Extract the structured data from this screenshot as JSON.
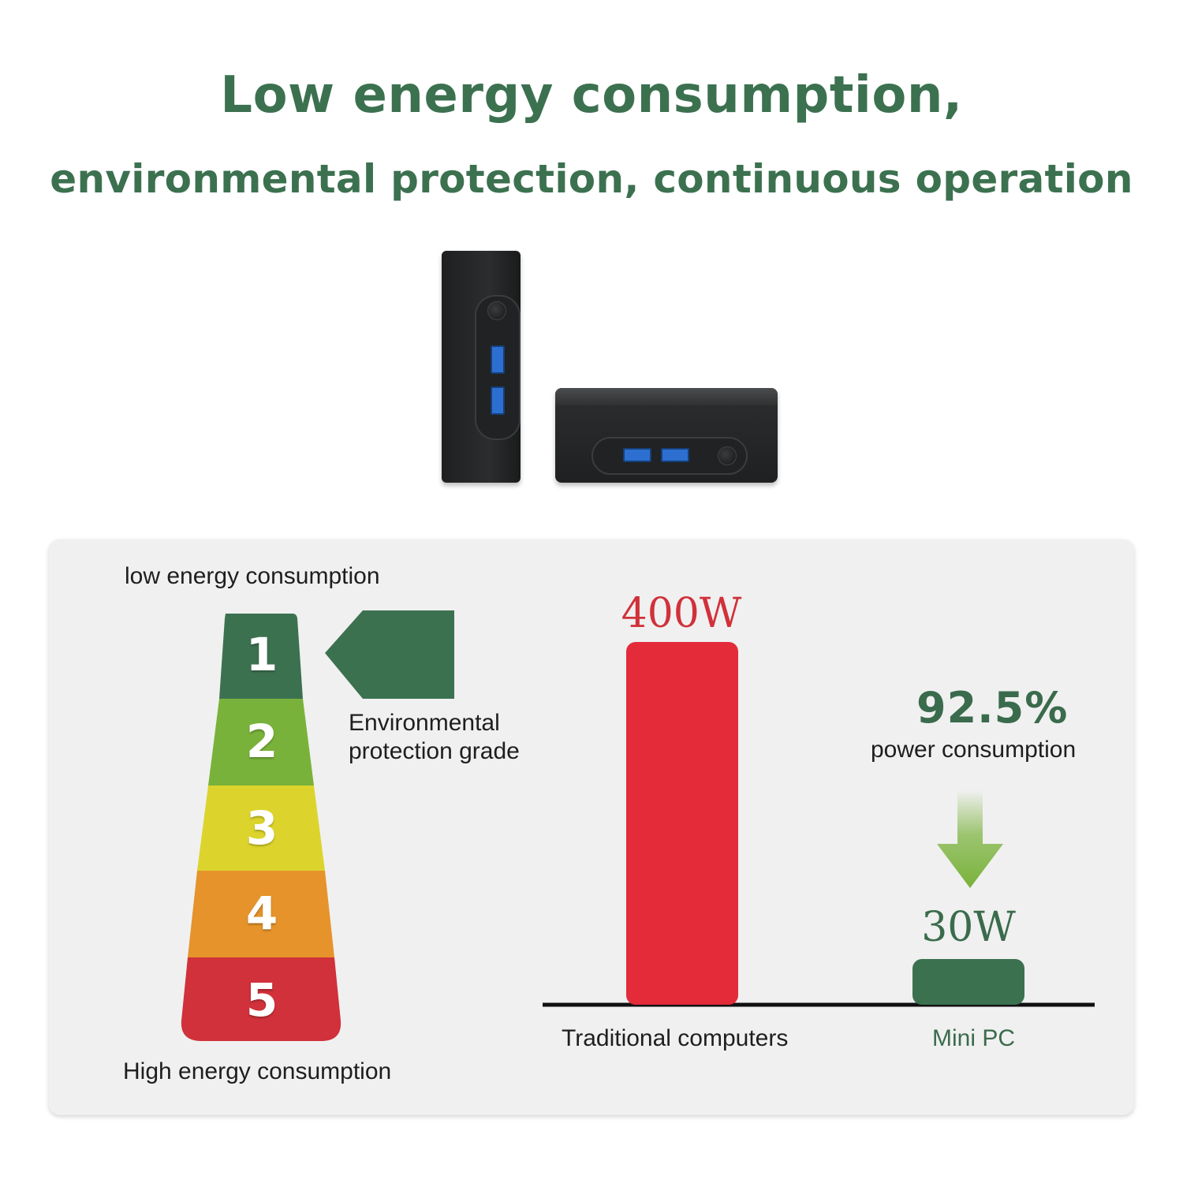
{
  "headline": {
    "line1": "Low energy consumption,",
    "line2": "environmental protection, continuous operation"
  },
  "energy_scale": {
    "top_label": "low energy consumption",
    "bottom_label": "High energy consumption",
    "grades": [
      {
        "label": "1",
        "color": "#3c7150"
      },
      {
        "label": "2",
        "color": "#79b23a"
      },
      {
        "label": "3",
        "color": "#dcd42c"
      },
      {
        "label": "4",
        "color": "#e5932a"
      },
      {
        "label": "5",
        "color": "#d0313a"
      }
    ],
    "indicator_color": "#3c7150",
    "indicator_caption_line1": "Environmental",
    "indicator_caption_line2": "protection grade"
  },
  "comparison": {
    "reduction_percent": "92.5%",
    "reduction_caption": "power consumption",
    "arrow_color": "#79b23a"
  },
  "chart_data": {
    "type": "bar",
    "categories": [
      "Traditional computers",
      "Mini PC"
    ],
    "values": [
      400,
      30
    ],
    "value_labels": [
      "400W",
      "30W"
    ],
    "colors": [
      "#e32b3a",
      "#3c7150"
    ],
    "xlabel": "",
    "ylabel": ""
  }
}
